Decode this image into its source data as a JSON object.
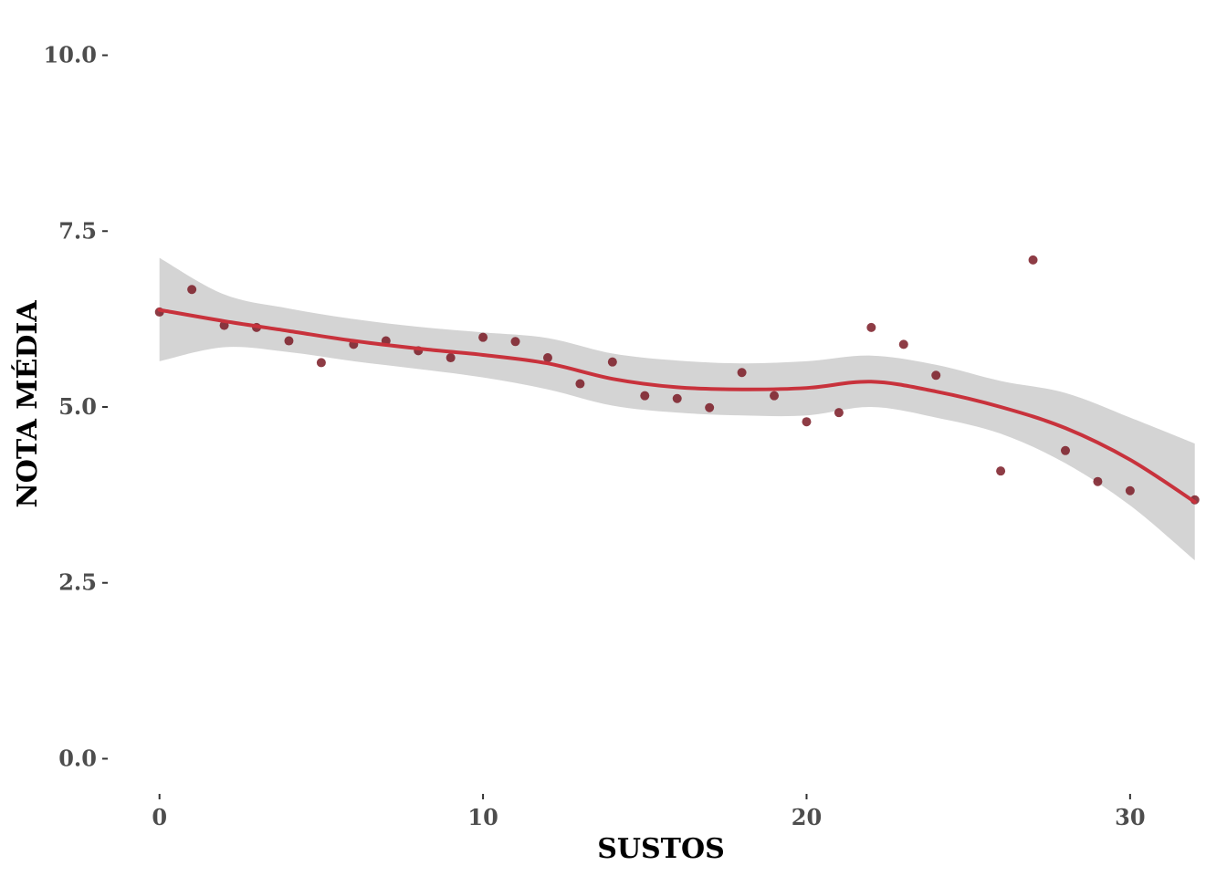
{
  "chart_data": {
    "type": "scatter",
    "title": "",
    "xlabel": "SUSTOS",
    "ylabel": "NOTA MÉDIA",
    "xlim": [
      -1.6,
      32.6
    ],
    "ylim": [
      -0.5,
      10.5
    ],
    "x_ticks": [
      0,
      10,
      20,
      30
    ],
    "y_ticks": [
      0,
      2.5,
      5,
      7.5,
      10
    ],
    "x_tick_labels": [
      "0",
      "10",
      "20",
      "30"
    ],
    "y_tick_labels": [
      "0.0",
      "2.5",
      "5.0",
      "7.5",
      "10.0"
    ],
    "grid": false,
    "legend": "none",
    "colors": {
      "points": "#7a1a24",
      "smooth_line": "#c8323c",
      "band": "#d4d4d4"
    },
    "points": [
      {
        "x": 0,
        "y": 6.35
      },
      {
        "x": 1,
        "y": 6.67
      },
      {
        "x": 2,
        "y": 6.16
      },
      {
        "x": 3,
        "y": 6.13
      },
      {
        "x": 4,
        "y": 5.94
      },
      {
        "x": 5,
        "y": 5.63
      },
      {
        "x": 6,
        "y": 5.89
      },
      {
        "x": 7,
        "y": 5.94
      },
      {
        "x": 8,
        "y": 5.8
      },
      {
        "x": 9,
        "y": 5.7
      },
      {
        "x": 10,
        "y": 5.99
      },
      {
        "x": 11,
        "y": 5.93
      },
      {
        "x": 12,
        "y": 5.7
      },
      {
        "x": 13,
        "y": 5.33
      },
      {
        "x": 14,
        "y": 5.64
      },
      {
        "x": 15,
        "y": 5.16
      },
      {
        "x": 16,
        "y": 5.12
      },
      {
        "x": 17,
        "y": 4.99
      },
      {
        "x": 18,
        "y": 5.49
      },
      {
        "x": 19,
        "y": 5.16
      },
      {
        "x": 20,
        "y": 4.79
      },
      {
        "x": 21,
        "y": 4.92
      },
      {
        "x": 22,
        "y": 6.13
      },
      {
        "x": 23,
        "y": 5.89
      },
      {
        "x": 24,
        "y": 5.45
      },
      {
        "x": 26,
        "y": 4.09
      },
      {
        "x": 27,
        "y": 7.09
      },
      {
        "x": 28,
        "y": 4.38
      },
      {
        "x": 29,
        "y": 3.94
      },
      {
        "x": 30,
        "y": 3.81
      },
      {
        "x": 32,
        "y": 3.68
      }
    ],
    "smooth": {
      "x": [
        0,
        2,
        4,
        6,
        8,
        10,
        12,
        14,
        16,
        18,
        20,
        22,
        24,
        26,
        28,
        30,
        32
      ],
      "y": [
        6.38,
        6.22,
        6.08,
        5.94,
        5.83,
        5.74,
        5.62,
        5.4,
        5.28,
        5.25,
        5.27,
        5.36,
        5.22,
        5.0,
        4.7,
        4.25,
        3.65
      ],
      "lower": [
        5.65,
        5.85,
        5.78,
        5.65,
        5.54,
        5.42,
        5.25,
        5.02,
        4.92,
        4.88,
        4.88,
        5.0,
        4.85,
        4.62,
        4.2,
        3.6,
        2.82
      ],
      "upper": [
        7.12,
        6.6,
        6.4,
        6.25,
        6.14,
        6.06,
        5.98,
        5.76,
        5.66,
        5.62,
        5.65,
        5.73,
        5.6,
        5.37,
        5.2,
        4.85,
        4.48
      ]
    }
  }
}
